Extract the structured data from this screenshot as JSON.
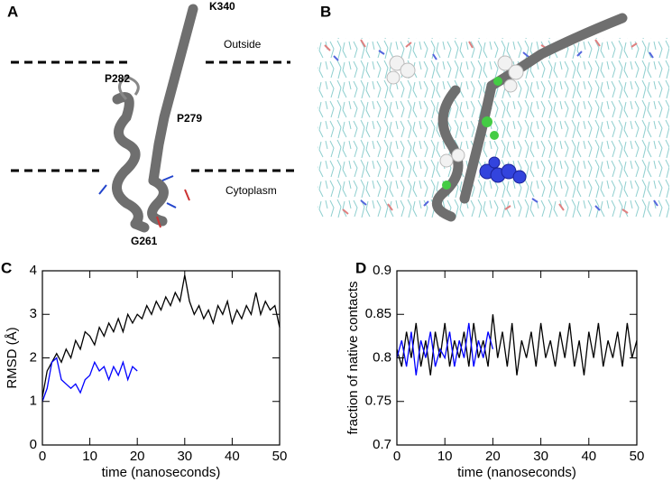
{
  "figure": {
    "panel_a": {
      "label": "A",
      "labels": [
        "K340",
        "Outside",
        "P282",
        "P279",
        "Cytoplasm",
        "G261"
      ]
    },
    "panel_b": {
      "label": "B"
    }
  },
  "chart_data": [
    {
      "type": "line",
      "label": "C",
      "xlabel": "time (nanoseconds)",
      "ylabel": "RMSD (Å)",
      "xlim": [
        0,
        50
      ],
      "xticks": [
        0,
        10,
        20,
        30,
        40,
        50
      ],
      "ylim": [
        0,
        4
      ],
      "yticks": [
        0,
        1,
        2,
        3,
        4
      ],
      "x": [
        0,
        1,
        2,
        3,
        4,
        5,
        6,
        7,
        8,
        9,
        10,
        11,
        12,
        13,
        14,
        15,
        16,
        17,
        18,
        19,
        20,
        21,
        22,
        23,
        24,
        25,
        26,
        27,
        28,
        29,
        30,
        31,
        32,
        33,
        34,
        35,
        36,
        37,
        38,
        39,
        40,
        41,
        42,
        43,
        44,
        45,
        46,
        47,
        48,
        49,
        50
      ],
      "series": [
        {
          "color": "#000000",
          "values": [
            1.1,
            1.7,
            1.9,
            2.1,
            1.9,
            2.2,
            2.0,
            2.4,
            2.2,
            2.6,
            2.5,
            2.3,
            2.7,
            2.5,
            2.8,
            2.6,
            2.9,
            2.6,
            3.0,
            2.8,
            3.0,
            2.9,
            3.2,
            3.0,
            3.3,
            3.1,
            3.4,
            3.2,
            3.5,
            3.3,
            3.9,
            3.3,
            3.0,
            3.2,
            2.9,
            3.1,
            2.8,
            3.2,
            3.0,
            3.3,
            2.8,
            3.1,
            2.9,
            3.2,
            3.0,
            3.5,
            3.0,
            3.3,
            3.1,
            3.2,
            2.7
          ]
        },
        {
          "color": "#0000ff",
          "values": [
            1.0,
            1.3,
            1.9,
            2.0,
            1.5,
            1.4,
            1.3,
            1.4,
            1.2,
            1.5,
            1.6,
            1.9,
            1.7,
            1.8,
            1.5,
            1.8,
            1.6,
            1.9,
            1.5,
            1.8,
            1.7,
            null,
            null,
            null,
            null,
            null,
            null,
            null,
            null,
            null,
            null,
            null,
            null,
            null,
            null,
            null,
            null,
            null,
            null,
            null,
            null,
            null,
            null,
            null,
            null,
            null,
            null,
            null,
            null,
            null,
            null
          ]
        }
      ]
    },
    {
      "type": "line",
      "label": "D",
      "xlabel": "time (nanoseconds)",
      "ylabel": "fraction of native contacts",
      "xlim": [
        0,
        50
      ],
      "xticks": [
        0,
        10,
        20,
        30,
        40,
        50
      ],
      "ylim": [
        0.7,
        0.9
      ],
      "yticks": [
        0.7,
        0.75,
        0.8,
        0.85,
        0.9
      ],
      "x": [
        0,
        1,
        2,
        3,
        4,
        5,
        6,
        7,
        8,
        9,
        10,
        11,
        12,
        13,
        14,
        15,
        16,
        17,
        18,
        19,
        20,
        21,
        22,
        23,
        24,
        25,
        26,
        27,
        28,
        29,
        30,
        31,
        32,
        33,
        34,
        35,
        36,
        37,
        38,
        39,
        40,
        41,
        42,
        43,
        44,
        45,
        46,
        47,
        48,
        49,
        50
      ],
      "series": [
        {
          "color": "#000000",
          "values": [
            0.81,
            0.79,
            0.83,
            0.8,
            0.84,
            0.79,
            0.82,
            0.78,
            0.83,
            0.8,
            0.84,
            0.79,
            0.82,
            0.8,
            0.83,
            0.79,
            0.84,
            0.8,
            0.82,
            0.79,
            0.85,
            0.8,
            0.83,
            0.79,
            0.84,
            0.78,
            0.82,
            0.8,
            0.83,
            0.79,
            0.84,
            0.8,
            0.82,
            0.79,
            0.83,
            0.8,
            0.84,
            0.79,
            0.82,
            0.78,
            0.83,
            0.8,
            0.84,
            0.79,
            0.82,
            0.8,
            0.83,
            0.79,
            0.84,
            0.8,
            0.82
          ]
        },
        {
          "color": "#0000ff",
          "values": [
            0.8,
            0.82,
            0.79,
            0.83,
            0.78,
            0.82,
            0.8,
            0.83,
            0.79,
            0.81,
            0.8,
            0.83,
            0.79,
            0.82,
            0.8,
            0.84,
            0.79,
            0.82,
            0.8,
            0.83,
            0.81,
            null,
            null,
            null,
            null,
            null,
            null,
            null,
            null,
            null,
            null,
            null,
            null,
            null,
            null,
            null,
            null,
            null,
            null,
            null,
            null,
            null,
            null,
            null,
            null,
            null,
            null,
            null,
            null,
            null,
            null
          ]
        }
      ]
    }
  ]
}
